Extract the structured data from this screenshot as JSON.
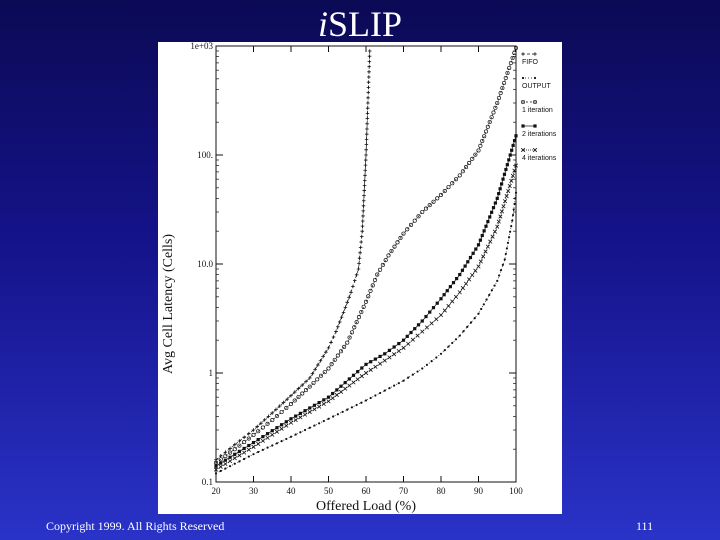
{
  "slide": {
    "title_italic": "i",
    "title_rest": "SLIP",
    "copyright": "Copyright 1999. All Rights Reserved",
    "page_number": "111"
  },
  "chart_data": {
    "type": "line",
    "xlabel": "Offered Load (%)",
    "ylabel": "Avg Cell Latency (Cells)",
    "x_scale": "linear",
    "y_scale": "log",
    "xlim": [
      20,
      100
    ],
    "ylim": [
      0.1,
      1000
    ],
    "x_ticks": [
      "20",
      "30",
      "40",
      "50",
      "60",
      "70",
      "80",
      "90",
      "100"
    ],
    "y_ticks": [
      {
        "value": 0.1,
        "label": "0.1"
      },
      {
        "value": 1,
        "label": "1"
      },
      {
        "value": 10,
        "label": "10.0"
      },
      {
        "value": 100,
        "label": "100."
      },
      {
        "value": 1000,
        "label": "1e+03"
      }
    ],
    "legend_position": "right",
    "series": [
      {
        "name": "FIFO",
        "marker": "plus",
        "x": [
          20,
          25,
          30,
          35,
          40,
          45,
          50,
          52,
          54,
          56,
          58,
          59,
          60,
          61
        ],
        "y": [
          0.16,
          0.22,
          0.3,
          0.43,
          0.62,
          0.9,
          1.7,
          2.4,
          3.6,
          5.5,
          9,
          20,
          100,
          900
        ]
      },
      {
        "name": "OUTPUT",
        "marker": "dot",
        "x": [
          20,
          30,
          40,
          50,
          60,
          70,
          75,
          80,
          85,
          90,
          95,
          97,
          99,
          100
        ],
        "y": [
          0.12,
          0.18,
          0.26,
          0.38,
          0.56,
          0.85,
          1.1,
          1.5,
          2.2,
          3.5,
          7,
          11,
          25,
          45
        ]
      },
      {
        "name": "1 iteration",
        "marker": "circle",
        "x": [
          20,
          25,
          30,
          35,
          40,
          45,
          50,
          55,
          60,
          63,
          66,
          70,
          75,
          80,
          85,
          90,
          95,
          100
        ],
        "y": [
          0.15,
          0.2,
          0.27,
          0.37,
          0.52,
          0.75,
          1.1,
          1.9,
          4.5,
          8,
          12,
          19,
          30,
          43,
          65,
          110,
          300,
          1200
        ]
      },
      {
        "name": "2 iterations",
        "marker": "square",
        "x": [
          20,
          30,
          40,
          50,
          60,
          65,
          70,
          75,
          80,
          85,
          90,
          95,
          100
        ],
        "y": [
          0.14,
          0.23,
          0.38,
          0.6,
          1.2,
          1.5,
          2.0,
          3.0,
          4.8,
          8,
          15,
          40,
          150
        ]
      },
      {
        "name": "4 iterations",
        "marker": "x",
        "x": [
          20,
          30,
          40,
          50,
          60,
          65,
          70,
          75,
          80,
          85,
          90,
          95,
          100
        ],
        "y": [
          0.13,
          0.21,
          0.35,
          0.55,
          1.0,
          1.3,
          1.7,
          2.4,
          3.4,
          5.5,
          9.5,
          22,
          80
        ]
      }
    ]
  }
}
